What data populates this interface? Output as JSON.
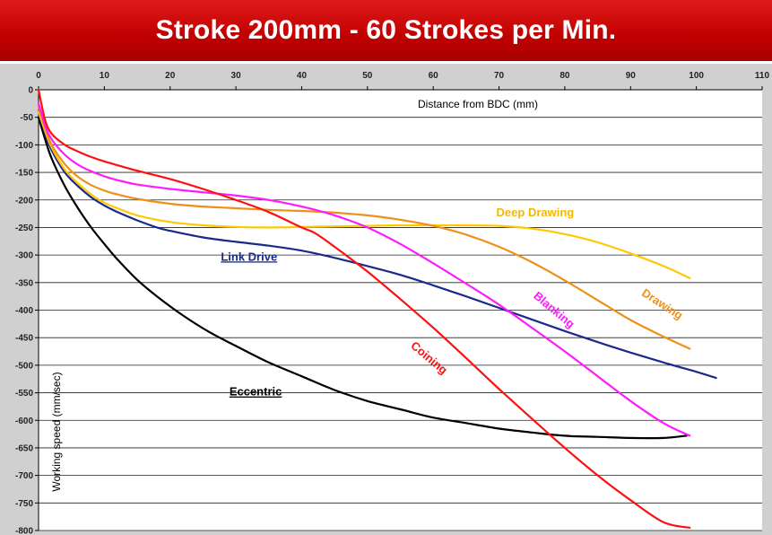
{
  "title": "Stroke 200mm - 60 Strokes per Min.",
  "chart_data": {
    "type": "line",
    "title": "Stroke 200mm - 60 Strokes per Min.",
    "xlabel": "Distance from BDC (mm)",
    "ylabel": "Working speed (mm/sec)",
    "xlim": [
      0,
      110
    ],
    "ylim": [
      -800,
      0
    ],
    "xticks": [
      0,
      10,
      20,
      30,
      40,
      50,
      60,
      70,
      80,
      90,
      100,
      110
    ],
    "yticks": [
      0,
      -50,
      -100,
      -150,
      -200,
      -250,
      -300,
      -350,
      -400,
      -450,
      -500,
      -550,
      -600,
      -650,
      -700,
      -750,
      -800
    ],
    "grid": "horizontal",
    "series": [
      {
        "name": "Eccentric",
        "color": "#000000",
        "label_underline": true,
        "x": [
          0,
          1,
          2,
          4,
          6,
          8,
          10,
          12,
          15,
          18,
          22,
          26,
          30,
          35,
          40,
          45,
          50,
          55,
          60,
          65,
          70,
          75,
          80,
          85,
          90,
          95,
          98.5
        ],
        "y": [
          -50,
          -90,
          -125,
          -175,
          -215,
          -250,
          -280,
          -308,
          -345,
          -375,
          -410,
          -440,
          -465,
          -495,
          -520,
          -545,
          -565,
          -580,
          -595,
          -605,
          -615,
          -622,
          -628,
          -630,
          -632,
          -632,
          -628
        ]
      },
      {
        "name": "Link Drive",
        "color": "#1a2a8c",
        "label_underline": true,
        "x": [
          0,
          1,
          2,
          4,
          6,
          8,
          10,
          12,
          15,
          18,
          20,
          25,
          30,
          35,
          40,
          45,
          50,
          55,
          60,
          65,
          70,
          75,
          80,
          85,
          90,
          95,
          100,
          103
        ],
        "y": [
          -40,
          -80,
          -110,
          -150,
          -175,
          -195,
          -210,
          -222,
          -237,
          -250,
          -256,
          -268,
          -276,
          -283,
          -292,
          -305,
          -320,
          -336,
          -355,
          -375,
          -396,
          -417,
          -438,
          -458,
          -477,
          -495,
          -512,
          -523
        ]
      },
      {
        "name": "Deep Drawing",
        "color": "#ffc800",
        "label_underline": false,
        "x": [
          0,
          1,
          2,
          4,
          6,
          8,
          10,
          12,
          15,
          20,
          25,
          30,
          35,
          40,
          45,
          50,
          55,
          60,
          65,
          70,
          75,
          80,
          85,
          90,
          95,
          99
        ],
        "y": [
          -40,
          -75,
          -105,
          -145,
          -170,
          -190,
          -205,
          -215,
          -228,
          -240,
          -246,
          -249,
          -250,
          -249,
          -248,
          -247,
          -246,
          -246,
          -246,
          -247,
          -252,
          -262,
          -277,
          -297,
          -320,
          -342
        ]
      },
      {
        "name": "Drawing",
        "color": "#f0901a",
        "label_underline": false,
        "x": [
          0,
          1,
          2,
          4,
          6,
          8,
          10,
          12,
          15,
          20,
          25,
          30,
          35,
          40,
          45,
          50,
          55,
          60,
          65,
          70,
          75,
          80,
          85,
          90,
          95,
          99
        ],
        "y": [
          -30,
          -70,
          -100,
          -135,
          -158,
          -173,
          -183,
          -190,
          -198,
          -207,
          -212,
          -215,
          -218,
          -220,
          -223,
          -228,
          -236,
          -247,
          -263,
          -285,
          -313,
          -346,
          -382,
          -418,
          -448,
          -470
        ]
      },
      {
        "name": "Blanking",
        "color": "#ff1aff",
        "label_underline": false,
        "x": [
          0,
          1,
          2,
          4,
          6,
          8,
          10,
          12,
          15,
          20,
          25,
          30,
          35,
          40,
          45,
          50,
          55,
          60,
          65,
          70,
          75,
          80,
          85,
          90,
          95,
          99
        ],
        "y": [
          -25,
          -65,
          -90,
          -118,
          -136,
          -148,
          -157,
          -164,
          -172,
          -180,
          -186,
          -192,
          -200,
          -212,
          -228,
          -250,
          -280,
          -315,
          -352,
          -390,
          -432,
          -475,
          -520,
          -565,
          -605,
          -628
        ]
      },
      {
        "name": "Coining",
        "color": "#ff1010",
        "label_underline": false,
        "x": [
          0,
          1,
          2,
          4,
          6,
          8,
          10,
          12,
          15,
          20,
          25,
          30,
          35,
          40,
          42,
          45,
          50,
          55,
          60,
          65,
          70,
          75,
          80,
          85,
          90,
          95,
          99
        ],
        "y": [
          0,
          -55,
          -80,
          -100,
          -112,
          -122,
          -130,
          -137,
          -147,
          -162,
          -180,
          -200,
          -222,
          -250,
          -260,
          -285,
          -330,
          -380,
          -432,
          -487,
          -543,
          -597,
          -650,
          -700,
          -745,
          -785,
          -795
        ]
      }
    ]
  }
}
